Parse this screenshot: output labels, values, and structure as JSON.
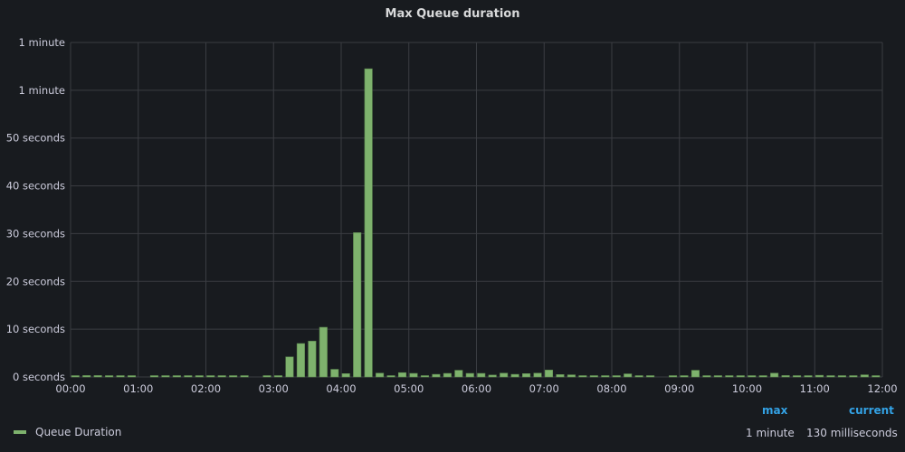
{
  "chart_data": {
    "type": "bar",
    "title": "Max Queue duration",
    "x_tick_labels": [
      "00:00",
      "01:00",
      "02:00",
      "03:00",
      "04:00",
      "05:00",
      "06:00",
      "07:00",
      "08:00",
      "09:00",
      "10:00",
      "11:00",
      "12:00"
    ],
    "x_interval_minutes": 10,
    "y_tick_values": [
      0,
      10,
      20,
      30,
      40,
      50,
      60,
      70
    ],
    "y_tick_labels": [
      "0 seconds",
      "10 seconds",
      "20 seconds",
      "30 seconds",
      "40 seconds",
      "50 seconds",
      "1 minute",
      "1 minute"
    ],
    "ylim": [
      0,
      70
    ],
    "yunit": "seconds",
    "grid": true,
    "legend_placement": "bottom",
    "series": [
      {
        "name": "Queue Duration",
        "color": "#7eb26d",
        "values": [
          0.1,
          0.3,
          0.3,
          0.1,
          0.1,
          0.1,
          null,
          0.1,
          0.15,
          0.1,
          0.15,
          0.15,
          0.1,
          0.1,
          0.1,
          0.1,
          null,
          0.1,
          0.15,
          4.2,
          7,
          7.5,
          10.4,
          1.6,
          0.7,
          30.2,
          64.5,
          0.8,
          0.2,
          0.9,
          0.75,
          0.15,
          0.55,
          0.75,
          1.4,
          0.75,
          0.75,
          0.4,
          0.8,
          0.55,
          0.7,
          0.8,
          1.45,
          0.5,
          0.45,
          0.15,
          0.1,
          0.15,
          0.15,
          0.65,
          0.2,
          0.1,
          null,
          0.1,
          0.15,
          1.4,
          0.1,
          0.1,
          0.15,
          0.15,
          0.1,
          0.15,
          0.8,
          0.3,
          0.05,
          0.15,
          0.35,
          0.05,
          0.15,
          0.15,
          0.45,
          0.13
        ]
      }
    ]
  },
  "legend": {
    "series_label": "Queue Duration",
    "headers": {
      "max": "max",
      "current": "current"
    },
    "values": {
      "max": "1 minute",
      "current": "130 milliseconds"
    },
    "header_color": "#33a2e5"
  }
}
